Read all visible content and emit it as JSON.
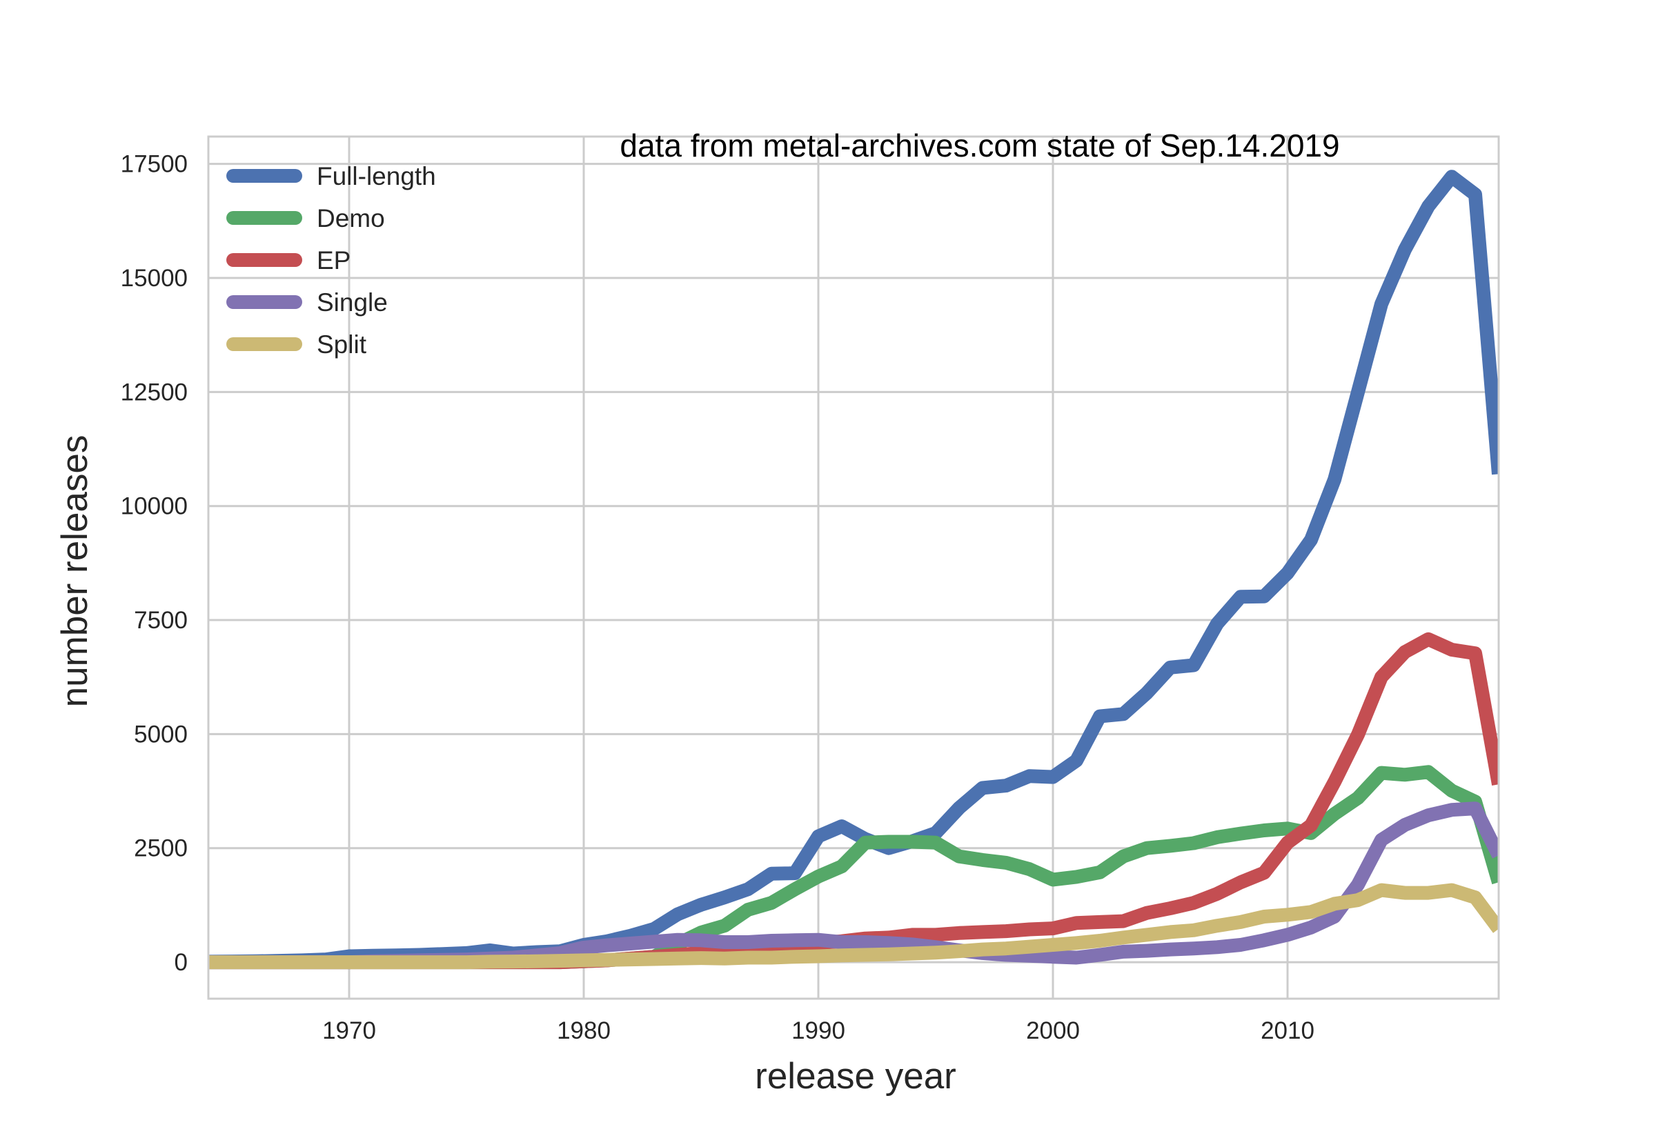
{
  "chart_data": {
    "type": "line",
    "title": "",
    "annotation": "data from metal-archives.com state of Sep.14.2019",
    "xlabel": "release year",
    "ylabel": "number releases",
    "xlim": [
      1964,
      2019
    ],
    "ylim": [
      -800,
      18100
    ],
    "x_ticks": [
      1970,
      1980,
      1990,
      2000,
      2010
    ],
    "y_ticks": [
      0,
      2500,
      5000,
      7500,
      10000,
      12500,
      15000,
      17500
    ],
    "grid": true,
    "legend_position": "upper-left",
    "x": [
      1964,
      1965,
      1966,
      1967,
      1968,
      1969,
      1970,
      1971,
      1972,
      1973,
      1974,
      1975,
      1976,
      1977,
      1978,
      1979,
      1980,
      1981,
      1982,
      1983,
      1984,
      1985,
      1986,
      1987,
      1988,
      1989,
      1990,
      1991,
      1992,
      1993,
      1994,
      1995,
      1996,
      1997,
      1998,
      1999,
      2000,
      2001,
      2002,
      2003,
      2004,
      2005,
      2006,
      2007,
      2008,
      2009,
      2010,
      2011,
      2012,
      2013,
      2014,
      2015,
      2016,
      2017,
      2018,
      2019
    ],
    "series": [
      {
        "name": "Full-length",
        "color": "#4c72b0",
        "values": [
          10,
          15,
          20,
          30,
          40,
          60,
          130,
          140,
          150,
          160,
          180,
          200,
          260,
          190,
          220,
          240,
          380,
          460,
          580,
          730,
          1050,
          1260,
          1420,
          1600,
          1940,
          1950,
          2760,
          2980,
          2700,
          2500,
          2650,
          2830,
          3380,
          3820,
          3870,
          4080,
          4060,
          4420,
          5390,
          5440,
          5900,
          6460,
          6510,
          7420,
          8010,
          8020,
          8530,
          9260,
          10580,
          12500,
          14430,
          15620,
          16570,
          17220,
          16830,
          10700
        ]
      },
      {
        "name": "Demo",
        "color": "#55a868",
        "values": [
          0,
          0,
          0,
          0,
          0,
          0,
          0,
          0,
          0,
          0,
          0,
          0,
          0,
          0,
          0,
          0,
          20,
          40,
          80,
          120,
          400,
          650,
          800,
          1150,
          1300,
          1600,
          1880,
          2100,
          2620,
          2640,
          2640,
          2620,
          2320,
          2240,
          2180,
          2040,
          1810,
          1870,
          1970,
          2320,
          2500,
          2550,
          2610,
          2740,
          2820,
          2890,
          2930,
          2830,
          3250,
          3600,
          4150,
          4110,
          4170,
          3760,
          3520,
          1750
        ]
      },
      {
        "name": "EP",
        "color": "#c44e52",
        "values": [
          0,
          0,
          0,
          0,
          0,
          0,
          0,
          0,
          0,
          0,
          0,
          0,
          0,
          0,
          0,
          0,
          20,
          40,
          80,
          120,
          160,
          200,
          260,
          300,
          340,
          380,
          420,
          460,
          520,
          540,
          600,
          600,
          640,
          660,
          680,
          720,
          740,
          860,
          880,
          900,
          1080,
          1180,
          1300,
          1500,
          1750,
          1960,
          2620,
          3000,
          3950,
          4990,
          6250,
          6800,
          7080,
          6850,
          6770,
          3900
        ]
      },
      {
        "name": "Single",
        "color": "#8172b2",
        "values": [
          0,
          0,
          0,
          0,
          0,
          0,
          0,
          20,
          30,
          40,
          50,
          60,
          80,
          100,
          150,
          200,
          320,
          370,
          410,
          450,
          490,
          480,
          440,
          440,
          470,
          480,
          490,
          440,
          440,
          420,
          390,
          330,
          260,
          200,
          160,
          140,
          120,
          100,
          160,
          230,
          250,
          280,
          300,
          330,
          380,
          480,
          600,
          760,
          1000,
          1700,
          2680,
          3010,
          3220,
          3340,
          3370,
          2340
        ]
      },
      {
        "name": "Split",
        "color": "#ccb974",
        "values": [
          0,
          0,
          0,
          0,
          0,
          0,
          0,
          0,
          0,
          0,
          0,
          0,
          10,
          15,
          20,
          30,
          40,
          50,
          60,
          70,
          80,
          90,
          80,
          100,
          100,
          120,
          130,
          150,
          160,
          170,
          190,
          210,
          240,
          280,
          300,
          340,
          380,
          420,
          470,
          540,
          600,
          660,
          700,
          800,
          880,
          1000,
          1040,
          1100,
          1280,
          1360,
          1580,
          1520,
          1520,
          1580,
          1420,
          730
        ]
      }
    ]
  }
}
